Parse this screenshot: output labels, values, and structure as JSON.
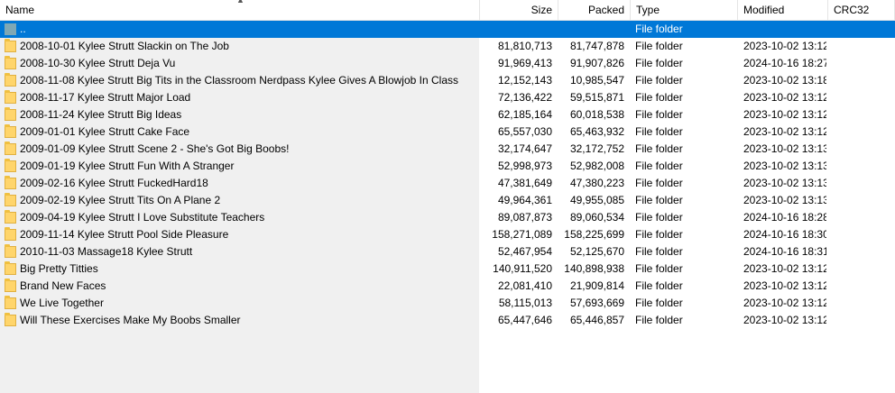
{
  "columns": {
    "name": "Name",
    "size": "Size",
    "packed": "Packed",
    "type": "Type",
    "modified": "Modified",
    "crc": "CRC32"
  },
  "parent_row": {
    "name": "..",
    "type": "File folder"
  },
  "rows": [
    {
      "name": "2008-10-01 Kylee Strutt Slackin on The Job",
      "size": "81,810,713",
      "packed": "81,747,878",
      "type": "File folder",
      "modified": "2023-10-02 13:12"
    },
    {
      "name": "2008-10-30 Kylee Strutt Deja Vu",
      "size": "91,969,413",
      "packed": "91,907,826",
      "type": "File folder",
      "modified": "2024-10-16 18:27"
    },
    {
      "name": "2008-11-08 Kylee Strutt Big Tits in the Classroom Nerdpass Kylee Gives A Blowjob In Class",
      "size": "12,152,143",
      "packed": "10,985,547",
      "type": "File folder",
      "modified": "2023-10-02 13:18"
    },
    {
      "name": "2008-11-17 Kylee Strutt Major Load",
      "size": "72,136,422",
      "packed": "59,515,871",
      "type": "File folder",
      "modified": "2023-10-02 13:12"
    },
    {
      "name": "2008-11-24 Kylee Strutt Big Ideas",
      "size": "62,185,164",
      "packed": "60,018,538",
      "type": "File folder",
      "modified": "2023-10-02 13:12"
    },
    {
      "name": "2009-01-01 Kylee Strutt Cake Face",
      "size": "65,557,030",
      "packed": "65,463,932",
      "type": "File folder",
      "modified": "2023-10-02 13:12"
    },
    {
      "name": "2009-01-09 Kylee Strutt Scene 2 - She's Got Big Boobs!",
      "size": "32,174,647",
      "packed": "32,172,752",
      "type": "File folder",
      "modified": "2023-10-02 13:13"
    },
    {
      "name": "2009-01-19 Kylee Strutt Fun With A Stranger",
      "size": "52,998,973",
      "packed": "52,982,008",
      "type": "File folder",
      "modified": "2023-10-02 13:13"
    },
    {
      "name": "2009-02-16 Kylee Strutt FuckedHard18",
      "size": "47,381,649",
      "packed": "47,380,223",
      "type": "File folder",
      "modified": "2023-10-02 13:13"
    },
    {
      "name": "2009-02-19 Kylee Strutt Tits On A Plane 2",
      "size": "49,964,361",
      "packed": "49,955,085",
      "type": "File folder",
      "modified": "2023-10-02 13:13"
    },
    {
      "name": "2009-04-19 Kylee Strutt I Love Substitute Teachers",
      "size": "89,087,873",
      "packed": "89,060,534",
      "type": "File folder",
      "modified": "2024-10-16 18:28"
    },
    {
      "name": "2009-11-14 Kylee Strutt Pool Side Pleasure",
      "size": "158,271,089",
      "packed": "158,225,699",
      "type": "File folder",
      "modified": "2024-10-16 18:30"
    },
    {
      "name": "2010-11-03 Massage18 Kylee Strutt",
      "size": "52,467,954",
      "packed": "52,125,670",
      "type": "File folder",
      "modified": "2024-10-16 18:31"
    },
    {
      "name": "Big Pretty Titties",
      "size": "140,911,520",
      "packed": "140,898,938",
      "type": "File folder",
      "modified": "2023-10-02 13:12"
    },
    {
      "name": "Brand New Faces",
      "size": "22,081,410",
      "packed": "21,909,814",
      "type": "File folder",
      "modified": "2023-10-02 13:12"
    },
    {
      "name": "We Live Together",
      "size": "58,115,013",
      "packed": "57,693,669",
      "type": "File folder",
      "modified": "2023-10-02 13:12"
    },
    {
      "name": "Will These Exercises Make My Boobs Smaller",
      "size": "65,447,646",
      "packed": "65,446,857",
      "type": "File folder",
      "modified": "2023-10-02 13:12"
    }
  ],
  "colors": {
    "selection": "#0078d7",
    "folder": "#ffd56b"
  },
  "icons": {
    "folder": "folder-icon",
    "parent": "parent-folder-icon",
    "sort": "sort-up-icon"
  }
}
